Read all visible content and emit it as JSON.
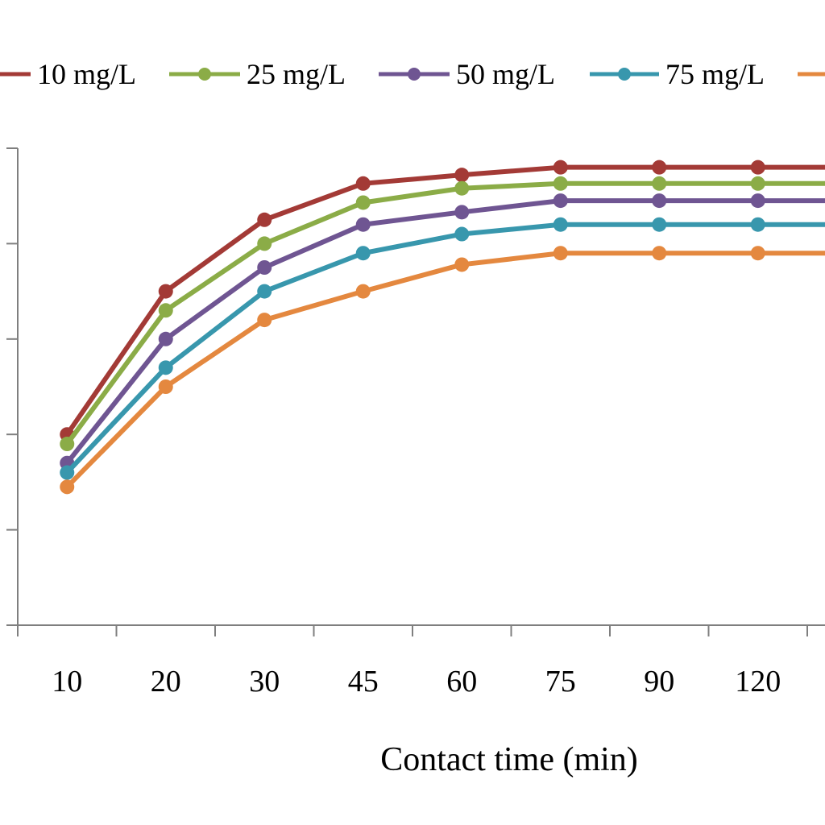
{
  "chart_data": {
    "type": "line",
    "title": "",
    "xlabel": "Contact time (min)",
    "ylabel": "",
    "categories": [
      "10",
      "20",
      "30",
      "45",
      "60",
      "75",
      "90",
      "120"
    ],
    "ylim": [
      0,
      5
    ],
    "grid": false,
    "legend_position": "top",
    "series": [
      {
        "name": "10 mg/L",
        "color": "#a33a36",
        "values": [
          2.0,
          3.5,
          4.25,
          4.63,
          4.72,
          4.8,
          4.8,
          4.8
        ]
      },
      {
        "name": "25 mg/L",
        "color": "#8bac47",
        "values": [
          1.9,
          3.3,
          4.0,
          4.43,
          4.58,
          4.63,
          4.63,
          4.63
        ]
      },
      {
        "name": "50 mg/L",
        "color": "#6f5592",
        "values": [
          1.7,
          3.0,
          3.75,
          4.2,
          4.33,
          4.45,
          4.45,
          4.45
        ]
      },
      {
        "name": "75 mg/L",
        "color": "#3897ad",
        "values": [
          1.6,
          2.7,
          3.5,
          3.9,
          4.1,
          4.2,
          4.2,
          4.2
        ]
      },
      {
        "name": "",
        "color": "#e4883f",
        "values": [
          1.45,
          2.5,
          3.2,
          3.5,
          3.78,
          3.9,
          3.9,
          3.9
        ]
      }
    ]
  }
}
